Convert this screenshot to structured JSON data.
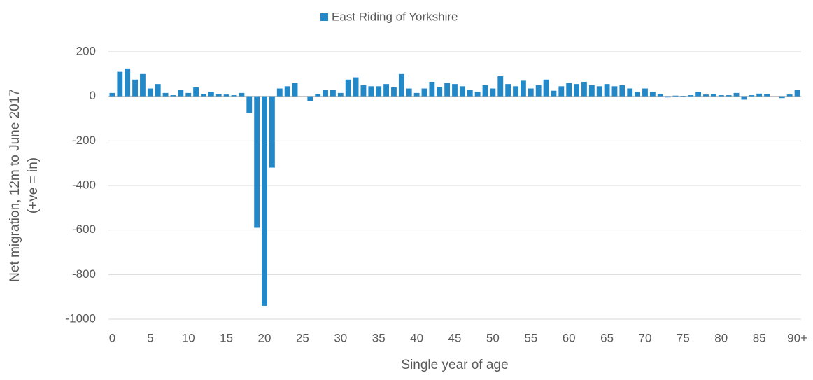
{
  "chart_data": {
    "type": "bar",
    "legend": "top",
    "x_label": "Single year of age",
    "y_label": [
      "Net migration, 12m to June 2017",
      "(+ve = in)"
    ],
    "series": [
      {
        "name": "East Riding of Yorkshire",
        "color": "#2288c8",
        "values": [
          15,
          110,
          125,
          75,
          100,
          35,
          55,
          15,
          5,
          30,
          15,
          40,
          10,
          20,
          10,
          8,
          5,
          15,
          -75,
          -590,
          -940,
          -320,
          35,
          45,
          60,
          0,
          -20,
          10,
          30,
          30,
          15,
          75,
          85,
          50,
          45,
          45,
          55,
          40,
          100,
          35,
          15,
          35,
          65,
          40,
          60,
          55,
          45,
          30,
          20,
          50,
          35,
          90,
          55,
          45,
          70,
          35,
          50,
          75,
          25,
          45,
          60,
          55,
          65,
          50,
          45,
          55,
          45,
          50,
          35,
          20,
          35,
          20,
          10,
          -5,
          3,
          2,
          5,
          20,
          8,
          10,
          5,
          5,
          15,
          -15,
          5,
          12,
          10,
          0,
          -8,
          8,
          30
        ]
      }
    ],
    "categories": [
      "0",
      null,
      null,
      null,
      null,
      "5",
      null,
      null,
      null,
      null,
      "10",
      null,
      null,
      null,
      null,
      "15",
      null,
      null,
      null,
      null,
      "20",
      null,
      null,
      null,
      null,
      "25",
      null,
      null,
      null,
      null,
      "30",
      null,
      null,
      null,
      null,
      "35",
      null,
      null,
      null,
      null,
      "40",
      null,
      null,
      null,
      null,
      "45",
      null,
      null,
      null,
      null,
      "50",
      null,
      null,
      null,
      null,
      "55",
      null,
      null,
      null,
      null,
      "60",
      null,
      null,
      null,
      null,
      "65",
      null,
      null,
      null,
      null,
      "70",
      null,
      null,
      null,
      null,
      "75",
      null,
      null,
      null,
      null,
      "80",
      null,
      null,
      null,
      null,
      "85",
      null,
      null,
      null,
      null,
      "90+"
    ],
    "ylim": [
      -1000,
      200
    ],
    "yticks": [
      -1000,
      -800,
      -600,
      -400,
      -200,
      0,
      200
    ],
    "grid": true
  }
}
